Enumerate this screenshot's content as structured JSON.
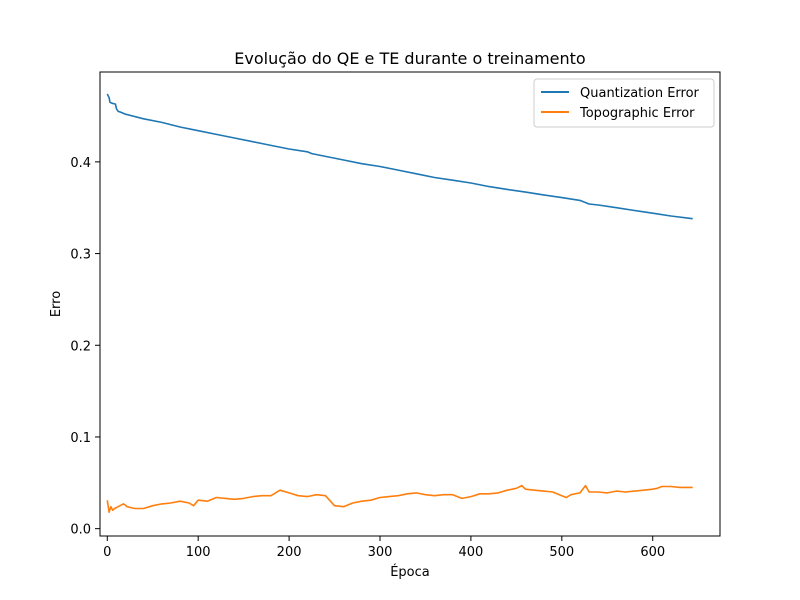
{
  "chart_data": {
    "type": "line",
    "title": "Evolução do QE e TE durante o treinamento",
    "xlabel": "Época",
    "ylabel": "Erro",
    "xlim": [
      -8,
      674
    ],
    "ylim": [
      -0.008,
      0.498
    ],
    "xticks": [
      0,
      100,
      200,
      300,
      400,
      500,
      600
    ],
    "xtick_labels": [
      "0",
      "100",
      "200",
      "300",
      "400",
      "500",
      "600"
    ],
    "yticks": [
      0.0,
      0.1,
      0.2,
      0.3,
      0.4
    ],
    "ytick_labels": [
      "0.0",
      "0.1",
      "0.2",
      "0.3",
      "0.4"
    ],
    "grid": false,
    "legend_position": "top-right",
    "series": [
      {
        "name": "Quantization Error",
        "color": "#1f77b4",
        "x": [
          0,
          2,
          3,
          5,
          9,
          10,
          12,
          15,
          20,
          40,
          60,
          80,
          100,
          120,
          140,
          160,
          180,
          200,
          220,
          225,
          240,
          260,
          280,
          300,
          320,
          340,
          360,
          380,
          400,
          420,
          440,
          460,
          480,
          500,
          520,
          530,
          540,
          560,
          580,
          600,
          620,
          644
        ],
        "values": [
          0.474,
          0.47,
          0.465,
          0.464,
          0.463,
          0.458,
          0.455,
          0.454,
          0.452,
          0.447,
          0.443,
          0.438,
          0.434,
          0.43,
          0.426,
          0.422,
          0.418,
          0.414,
          0.411,
          0.409,
          0.406,
          0.402,
          0.398,
          0.395,
          0.391,
          0.387,
          0.383,
          0.38,
          0.377,
          0.373,
          0.37,
          0.367,
          0.364,
          0.361,
          0.358,
          0.354,
          0.353,
          0.35,
          0.347,
          0.344,
          0.341,
          0.338
        ]
      },
      {
        "name": "Topographic Error",
        "color": "#ff7f0e",
        "x": [
          0,
          2,
          4,
          6,
          8,
          10,
          14,
          18,
          22,
          26,
          30,
          40,
          50,
          60,
          70,
          80,
          90,
          95,
          100,
          110,
          120,
          130,
          140,
          150,
          160,
          170,
          180,
          190,
          200,
          210,
          220,
          230,
          240,
          250,
          260,
          270,
          280,
          290,
          300,
          310,
          320,
          330,
          340,
          350,
          360,
          370,
          380,
          390,
          400,
          410,
          420,
          430,
          440,
          450,
          456,
          460,
          470,
          480,
          490,
          500,
          505,
          510,
          520,
          526,
          530,
          540,
          550,
          560,
          570,
          580,
          590,
          600,
          605,
          610,
          620,
          630,
          644
        ],
        "values": [
          0.031,
          0.018,
          0.024,
          0.02,
          0.022,
          0.023,
          0.025,
          0.027,
          0.024,
          0.023,
          0.022,
          0.022,
          0.025,
          0.027,
          0.028,
          0.03,
          0.028,
          0.025,
          0.031,
          0.03,
          0.034,
          0.033,
          0.032,
          0.033,
          0.035,
          0.036,
          0.036,
          0.042,
          0.039,
          0.036,
          0.035,
          0.037,
          0.036,
          0.025,
          0.024,
          0.028,
          0.03,
          0.031,
          0.034,
          0.035,
          0.036,
          0.038,
          0.039,
          0.037,
          0.036,
          0.037,
          0.037,
          0.033,
          0.035,
          0.038,
          0.038,
          0.039,
          0.042,
          0.044,
          0.047,
          0.043,
          0.042,
          0.041,
          0.04,
          0.036,
          0.034,
          0.037,
          0.039,
          0.047,
          0.04,
          0.04,
          0.039,
          0.041,
          0.04,
          0.041,
          0.042,
          0.043,
          0.044,
          0.046,
          0.046,
          0.045,
          0.045
        ]
      }
    ]
  }
}
